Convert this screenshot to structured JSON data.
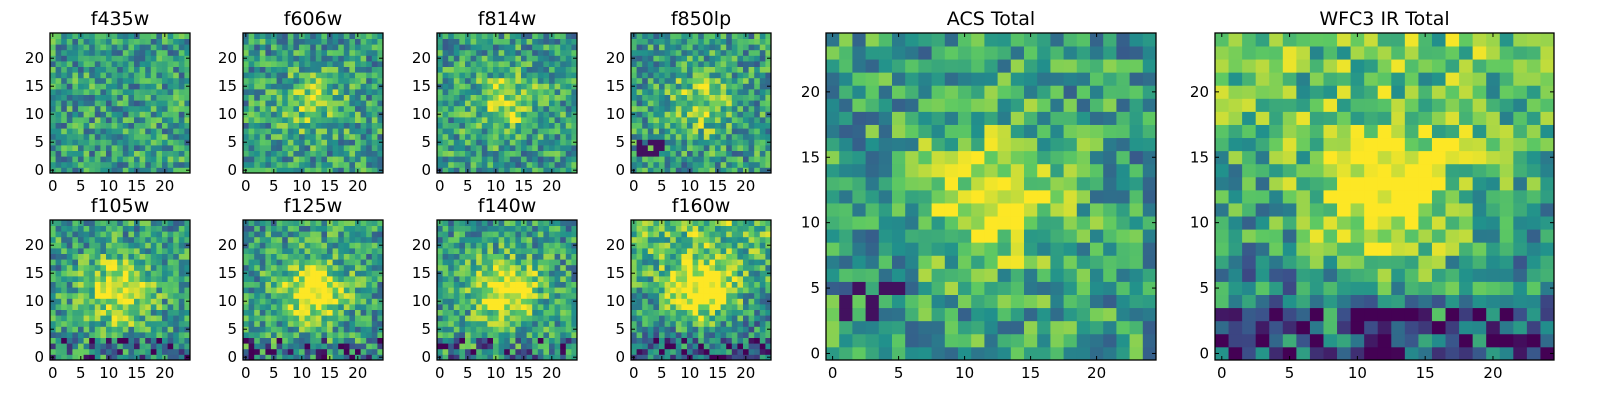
{
  "chart_data": [
    {
      "type": "heatmap",
      "title": "f435w",
      "seed": 1,
      "peak": 0.0,
      "dark_patch": false,
      "xticks": [
        "0",
        "5",
        "10",
        "15",
        "20"
      ],
      "yticks": [
        "0",
        "5",
        "10",
        "15",
        "20"
      ],
      "xlim": [
        0,
        25
      ],
      "ylim": [
        0,
        25
      ]
    },
    {
      "type": "heatmap",
      "title": "f606w",
      "seed": 2,
      "peak": 0.25,
      "dark_patch": false,
      "xticks": [
        "0",
        "5",
        "10",
        "15",
        "20"
      ],
      "yticks": [
        "0",
        "5",
        "10",
        "15",
        "20"
      ],
      "xlim": [
        0,
        25
      ],
      "ylim": [
        0,
        25
      ]
    },
    {
      "type": "heatmap",
      "title": "f814w",
      "seed": 3,
      "peak": 0.35,
      "dark_patch": false,
      "xticks": [
        "0",
        "5",
        "10",
        "15",
        "20"
      ],
      "yticks": [
        "0",
        "5",
        "10",
        "15",
        "20"
      ],
      "xlim": [
        0,
        25
      ],
      "ylim": [
        0,
        25
      ]
    },
    {
      "type": "heatmap",
      "title": "f850lp",
      "seed": 4,
      "peak": 0.3,
      "dark_patch": true,
      "xticks": [
        "0",
        "5",
        "10",
        "15",
        "20"
      ],
      "yticks": [
        "0",
        "5",
        "10",
        "15",
        "20"
      ],
      "xlim": [
        0,
        25
      ],
      "ylim": [
        0,
        25
      ]
    },
    {
      "type": "heatmap",
      "title": "f105w",
      "seed": 5,
      "peak": 0.5,
      "dark_patch": false,
      "xticks": [
        "0",
        "5",
        "10",
        "15",
        "20"
      ],
      "yticks": [
        "0",
        "5",
        "10",
        "15",
        "20"
      ],
      "xlim": [
        0,
        25
      ],
      "ylim": [
        0,
        25
      ]
    },
    {
      "type": "heatmap",
      "title": "f125w",
      "seed": 6,
      "peak": 0.55,
      "dark_patch": false,
      "xticks": [
        "0",
        "5",
        "10",
        "15",
        "20"
      ],
      "yticks": [
        "0",
        "5",
        "10",
        "15",
        "20"
      ],
      "xlim": [
        0,
        25
      ],
      "ylim": [
        0,
        25
      ]
    },
    {
      "type": "heatmap",
      "title": "f140w",
      "seed": 7,
      "peak": 0.55,
      "dark_patch": false,
      "xticks": [
        "0",
        "5",
        "10",
        "15",
        "20"
      ],
      "yticks": [
        "0",
        "5",
        "10",
        "15",
        "20"
      ],
      "xlim": [
        0,
        25
      ],
      "ylim": [
        0,
        25
      ]
    },
    {
      "type": "heatmap",
      "title": "f160w",
      "seed": 8,
      "peak": 0.6,
      "dark_patch": false,
      "xticks": [
        "0",
        "5",
        "10",
        "15",
        "20"
      ],
      "yticks": [
        "0",
        "5",
        "10",
        "15",
        "20"
      ],
      "xlim": [
        0,
        25
      ],
      "ylim": [
        0,
        25
      ]
    },
    {
      "type": "heatmap",
      "title": "ACS Total",
      "seed": 9,
      "peak": 0.45,
      "dark_patch": true,
      "xticks": [
        "0",
        "5",
        "10",
        "15",
        "20"
      ],
      "yticks": [
        "0",
        "5",
        "10",
        "15",
        "20"
      ],
      "xlim": [
        0,
        25
      ],
      "ylim": [
        0,
        25
      ]
    },
    {
      "type": "heatmap",
      "title": "WFC3 IR Total",
      "seed": 10,
      "peak": 0.6,
      "dark_patch": false,
      "xticks": [
        "0",
        "5",
        "10",
        "15",
        "20"
      ],
      "yticks": [
        "0",
        "5",
        "10",
        "15",
        "20"
      ],
      "xlim": [
        0,
        25
      ],
      "ylim": [
        0,
        25
      ]
    }
  ],
  "colormap": [
    "#440154",
    "#3b528b",
    "#21918c",
    "#5ec962",
    "#fde725"
  ]
}
